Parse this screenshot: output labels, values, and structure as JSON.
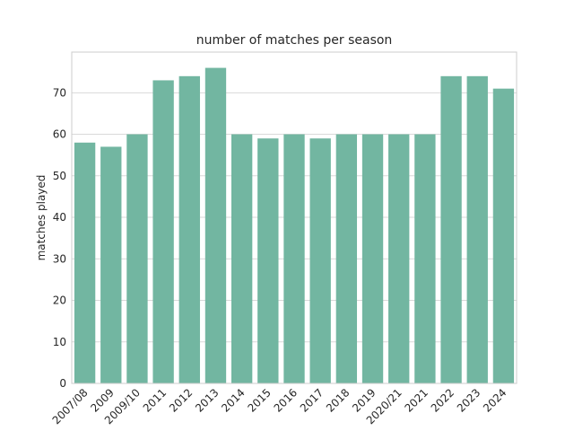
{
  "chart_data": {
    "type": "bar",
    "title": "number of matches per season",
    "xlabel": "",
    "ylabel": "matches played",
    "categories": [
      "2007/08",
      "2009",
      "2009/10",
      "2011",
      "2012",
      "2013",
      "2014",
      "2015",
      "2016",
      "2017",
      "2018",
      "2019",
      "2020/21",
      "2021",
      "2022",
      "2023",
      "2024"
    ],
    "values": [
      58,
      57,
      60,
      73,
      74,
      76,
      60,
      59,
      60,
      59,
      60,
      60,
      60,
      60,
      74,
      74,
      71
    ],
    "ylim": [
      0,
      79.8
    ],
    "yticks": [
      0,
      10,
      20,
      30,
      40,
      50,
      60,
      70
    ],
    "grid": true,
    "bar_color": "#72b6a1"
  }
}
